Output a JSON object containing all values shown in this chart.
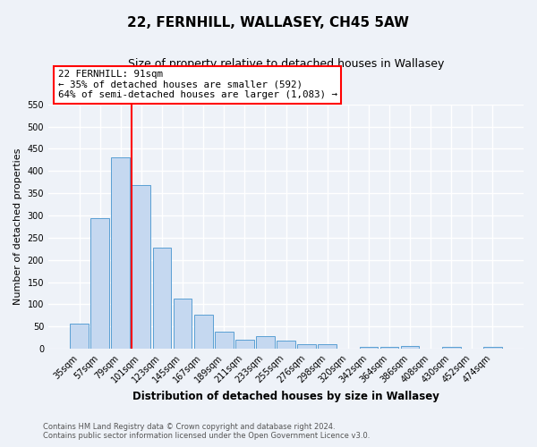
{
  "title": "22, FERNHILL, WALLASEY, CH45 5AW",
  "subtitle": "Size of property relative to detached houses in Wallasey",
  "xlabel": "Distribution of detached houses by size in Wallasey",
  "ylabel": "Number of detached properties",
  "categories": [
    "35sqm",
    "57sqm",
    "79sqm",
    "101sqm",
    "123sqm",
    "145sqm",
    "167sqm",
    "189sqm",
    "211sqm",
    "233sqm",
    "255sqm",
    "276sqm",
    "298sqm",
    "320sqm",
    "342sqm",
    "364sqm",
    "386sqm",
    "408sqm",
    "430sqm",
    "452sqm",
    "474sqm"
  ],
  "values": [
    57,
    293,
    430,
    368,
    228,
    113,
    76,
    39,
    21,
    29,
    18,
    10,
    10,
    0,
    5,
    4,
    6,
    0,
    5,
    0,
    5
  ],
  "bar_color": "#c5d8f0",
  "bar_edge_color": "#5a9fd4",
  "vline_bar_index": 3,
  "vline_color": "red",
  "ylim": [
    0,
    550
  ],
  "yticks": [
    0,
    50,
    100,
    150,
    200,
    250,
    300,
    350,
    400,
    450,
    500,
    550
  ],
  "annotation_title": "22 FERNHILL: 91sqm",
  "annotation_line1": "← 35% of detached houses are smaller (592)",
  "annotation_line2": "64% of semi-detached houses are larger (1,083) →",
  "annotation_box_color": "white",
  "annotation_box_edge": "red",
  "footer1": "Contains HM Land Registry data © Crown copyright and database right 2024.",
  "footer2": "Contains public sector information licensed under the Open Government Licence v3.0.",
  "background_color": "#eef2f8",
  "grid_color": "white"
}
